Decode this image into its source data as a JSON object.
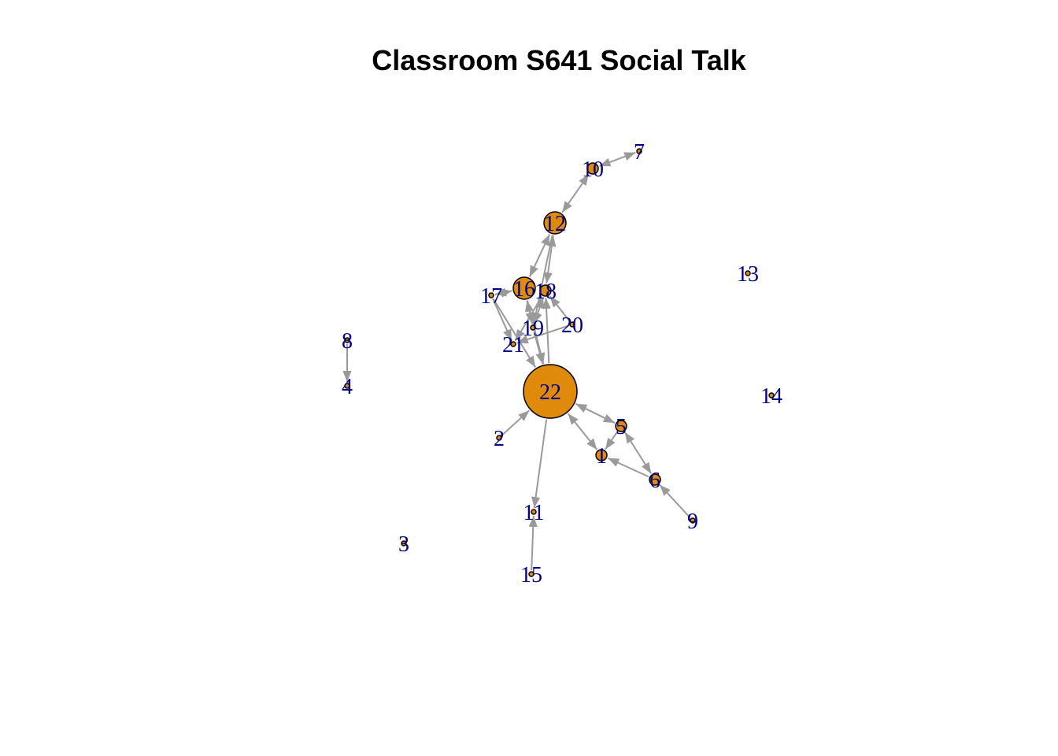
{
  "title": "Classroom S641 Social Talk",
  "colors": {
    "node_fill": "#E08A0B",
    "node_stroke": "#000000",
    "edge": "#9A9A9A",
    "label": "#00008B"
  },
  "nodes": [
    {
      "id": "1",
      "label": "1",
      "size": "small"
    },
    {
      "id": "2",
      "label": "2",
      "size": "tiny"
    },
    {
      "id": "3",
      "label": "3",
      "size": "tiny"
    },
    {
      "id": "4",
      "label": "4",
      "size": "tiny"
    },
    {
      "id": "5",
      "label": "5",
      "size": "small"
    },
    {
      "id": "6",
      "label": "6",
      "size": "small"
    },
    {
      "id": "7",
      "label": "7",
      "size": "tiny"
    },
    {
      "id": "8",
      "label": "8",
      "size": "tiny"
    },
    {
      "id": "9",
      "label": "9",
      "size": "tiny"
    },
    {
      "id": "10",
      "label": "10",
      "size": "small"
    },
    {
      "id": "11",
      "label": "11",
      "size": "tiny"
    },
    {
      "id": "12",
      "label": "12",
      "size": "medium"
    },
    {
      "id": "13",
      "label": "13",
      "size": "tiny"
    },
    {
      "id": "14",
      "label": "14",
      "size": "tiny"
    },
    {
      "id": "15",
      "label": "15",
      "size": "tiny"
    },
    {
      "id": "16",
      "label": "16",
      "size": "medium"
    },
    {
      "id": "17",
      "label": "17",
      "size": "tiny"
    },
    {
      "id": "18",
      "label": "18",
      "size": "small"
    },
    {
      "id": "19",
      "label": "19",
      "size": "tiny"
    },
    {
      "id": "20",
      "label": "20",
      "size": "tiny"
    },
    {
      "id": "21",
      "label": "21",
      "size": "tiny"
    },
    {
      "id": "22",
      "label": "22",
      "size": "large"
    }
  ],
  "edges": [
    {
      "from": "10",
      "to": "7",
      "both": true
    },
    {
      "from": "10",
      "to": "12",
      "both": true
    },
    {
      "from": "12",
      "to": "16",
      "both": true
    },
    {
      "from": "12",
      "to": "18",
      "both": true
    },
    {
      "from": "12",
      "to": "19",
      "both": false
    },
    {
      "from": "17",
      "to": "16",
      "both": true
    },
    {
      "from": "17",
      "to": "21",
      "both": false
    },
    {
      "from": "17",
      "to": "22",
      "both": false
    },
    {
      "from": "16",
      "to": "19",
      "both": true
    },
    {
      "from": "16",
      "to": "22",
      "both": false
    },
    {
      "from": "18",
      "to": "19",
      "both": true
    },
    {
      "from": "18",
      "to": "21",
      "both": false
    },
    {
      "from": "22",
      "to": "18",
      "both": false
    },
    {
      "from": "20",
      "to": "18",
      "both": false
    },
    {
      "from": "20",
      "to": "21",
      "both": false
    },
    {
      "from": "19",
      "to": "22",
      "both": false
    },
    {
      "from": "2",
      "to": "22",
      "both": false
    },
    {
      "from": "22",
      "to": "11",
      "both": false
    },
    {
      "from": "15",
      "to": "11",
      "both": false
    },
    {
      "from": "22",
      "to": "5",
      "both": true
    },
    {
      "from": "22",
      "to": "1",
      "both": true
    },
    {
      "from": "5",
      "to": "1",
      "both": false
    },
    {
      "from": "5",
      "to": "6",
      "both": true
    },
    {
      "from": "6",
      "to": "1",
      "both": false
    },
    {
      "from": "9",
      "to": "6",
      "both": false
    },
    {
      "from": "8",
      "to": "4",
      "both": false
    }
  ]
}
